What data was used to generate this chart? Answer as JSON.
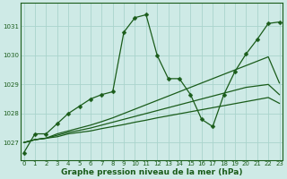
{
  "xlabel": "Graphe pression niveau de la mer (hPa)",
  "bg_color": "#ceeae6",
  "line_color": "#1a5c1a",
  "grid_color": "#aad4cc",
  "ylim": [
    1026.4,
    1031.8
  ],
  "xlim": [
    -0.3,
    23.3
  ],
  "yticks": [
    1027,
    1028,
    1029,
    1030,
    1031
  ],
  "xticks": [
    0,
    1,
    2,
    3,
    4,
    5,
    6,
    7,
    8,
    9,
    10,
    11,
    12,
    13,
    14,
    15,
    16,
    17,
    18,
    19,
    20,
    21,
    22,
    23
  ],
  "series": [
    {
      "x": [
        0,
        1,
        2,
        3,
        4,
        5,
        6,
        7,
        8,
        9,
        10,
        11,
        12,
        13,
        14,
        15,
        16,
        17,
        18,
        19,
        20,
        21,
        22,
        23
      ],
      "y": [
        1027.0,
        1027.1,
        1027.15,
        1027.2,
        1027.3,
        1027.35,
        1027.4,
        1027.48,
        1027.55,
        1027.62,
        1027.7,
        1027.77,
        1027.85,
        1027.92,
        1027.99,
        1028.06,
        1028.13,
        1028.2,
        1028.27,
        1028.34,
        1028.41,
        1028.48,
        1028.55,
        1028.35
      ],
      "marker": false
    },
    {
      "x": [
        0,
        1,
        2,
        3,
        4,
        5,
        6,
        7,
        8,
        9,
        10,
        11,
        12,
        13,
        14,
        15,
        16,
        17,
        18,
        19,
        20,
        21,
        22,
        23
      ],
      "y": [
        1027.0,
        1027.1,
        1027.15,
        1027.25,
        1027.35,
        1027.42,
        1027.5,
        1027.6,
        1027.7,
        1027.8,
        1027.9,
        1028.0,
        1028.1,
        1028.2,
        1028.3,
        1028.4,
        1028.5,
        1028.6,
        1028.7,
        1028.8,
        1028.9,
        1028.95,
        1029.0,
        1028.65
      ],
      "marker": false
    },
    {
      "x": [
        0,
        1,
        2,
        3,
        4,
        5,
        6,
        7,
        8,
        9,
        10,
        11,
        12,
        13,
        14,
        15,
        16,
        17,
        18,
        19,
        20,
        21,
        22,
        23
      ],
      "y": [
        1027.0,
        1027.1,
        1027.15,
        1027.3,
        1027.4,
        1027.5,
        1027.6,
        1027.72,
        1027.85,
        1028.0,
        1028.15,
        1028.3,
        1028.45,
        1028.6,
        1028.75,
        1028.9,
        1029.05,
        1029.2,
        1029.35,
        1029.5,
        1029.65,
        1029.8,
        1029.95,
        1029.05
      ],
      "marker": false
    },
    {
      "x": [
        0,
        1,
        2,
        3,
        4,
        5,
        6,
        7,
        8,
        9,
        10,
        11,
        12,
        13,
        14,
        15,
        16,
        17,
        18,
        19,
        20,
        21,
        22,
        23
      ],
      "y": [
        1026.65,
        1027.3,
        1027.3,
        1027.65,
        1028.0,
        1028.25,
        1028.5,
        1028.65,
        1028.75,
        1030.8,
        1031.3,
        1031.4,
        1030.0,
        1029.2,
        1029.2,
        1028.65,
        1027.8,
        1027.55,
        1028.65,
        1029.45,
        1030.05,
        1030.55,
        1031.1,
        1031.15
      ],
      "marker": true
    }
  ],
  "line_width": 0.9,
  "marker_size": 2.5,
  "tick_fontsize": 5.0,
  "xlabel_fontsize": 6.5,
  "border_color": "#1a5c1a"
}
